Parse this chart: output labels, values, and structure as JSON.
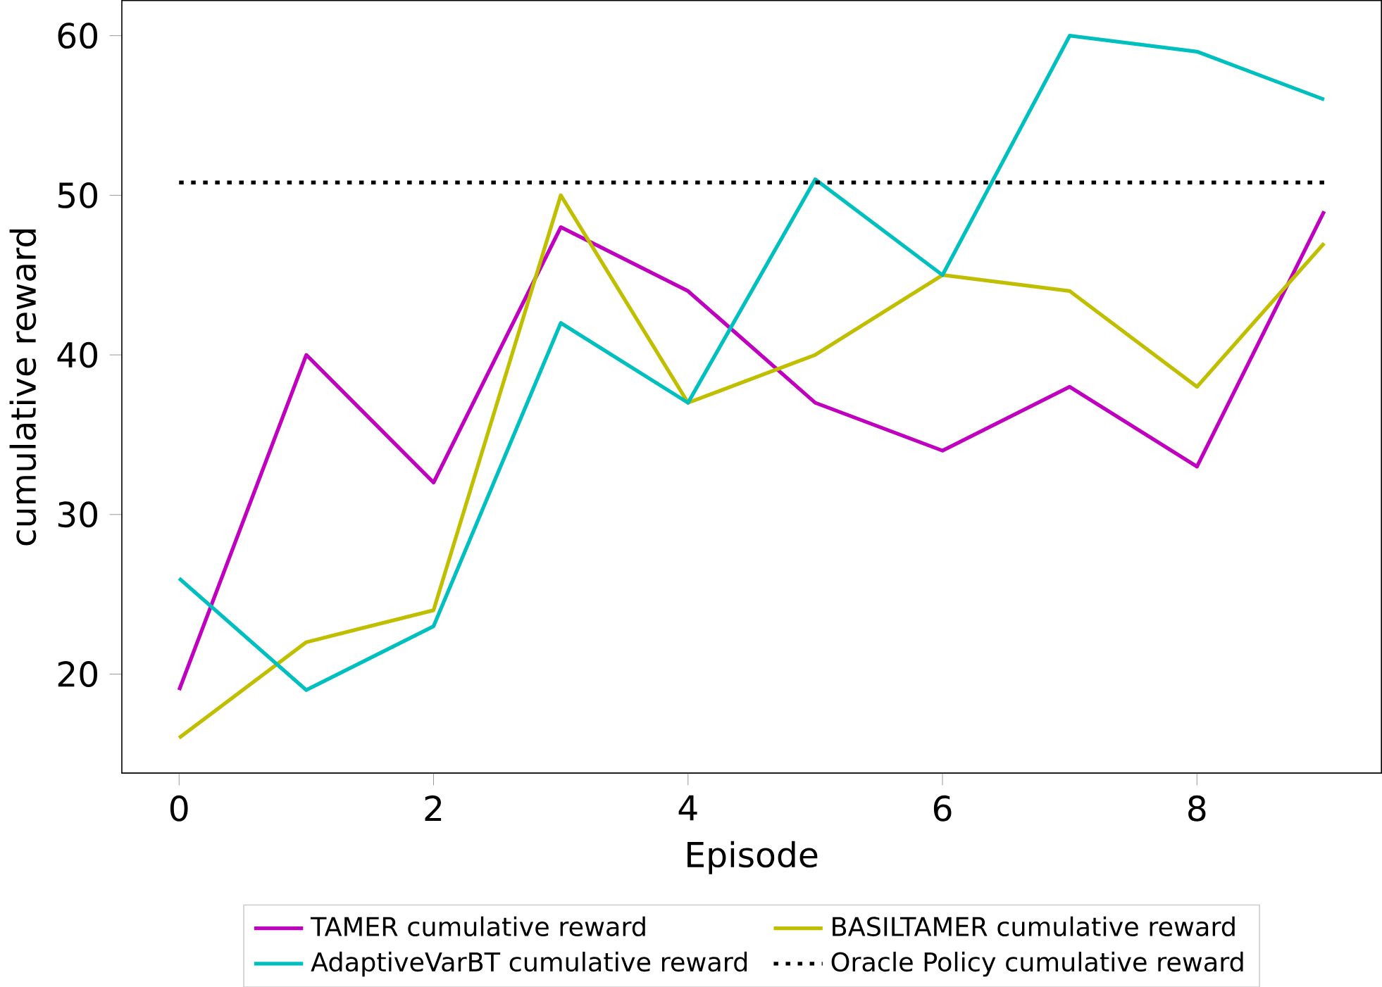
{
  "chart_data": {
    "type": "line",
    "xlabel": "Episode",
    "ylabel": "cumulative reward",
    "x": [
      0,
      1,
      2,
      3,
      4,
      5,
      6,
      7,
      8,
      9
    ],
    "series": [
      {
        "name": "TAMER cumulative reward",
        "color": "#bf00bf",
        "values": [
          19,
          40,
          32,
          48,
          44,
          37,
          34,
          38,
          33,
          49
        ]
      },
      {
        "name": "BASILTAMER cumulative reward",
        "color": "#bfbf00",
        "values": [
          16,
          22,
          24,
          50,
          37,
          40,
          45,
          44,
          38,
          47
        ]
      },
      {
        "name": "AdaptiveVarBT cumulative reward",
        "color": "#00bfbf",
        "values": [
          26,
          19,
          23,
          42,
          37,
          51,
          45,
          60,
          59,
          56
        ]
      },
      {
        "name": "Oracle Policy cumulative reward",
        "color": "#000000",
        "line_style": "dotted",
        "values": [
          50.8,
          50.8,
          50.8,
          50.8,
          50.8,
          50.8,
          50.8,
          50.8,
          50.8,
          50.8
        ]
      }
    ],
    "xlim": [
      -0.45,
      9.45
    ],
    "ylim": [
      13.8,
      62.2
    ],
    "xticks": [
      0,
      2,
      4,
      6,
      8
    ],
    "yticks": [
      20,
      30,
      40,
      50,
      60
    ],
    "legend": "bottom",
    "grid": false,
    "marker": "none",
    "line_style": "solid"
  }
}
